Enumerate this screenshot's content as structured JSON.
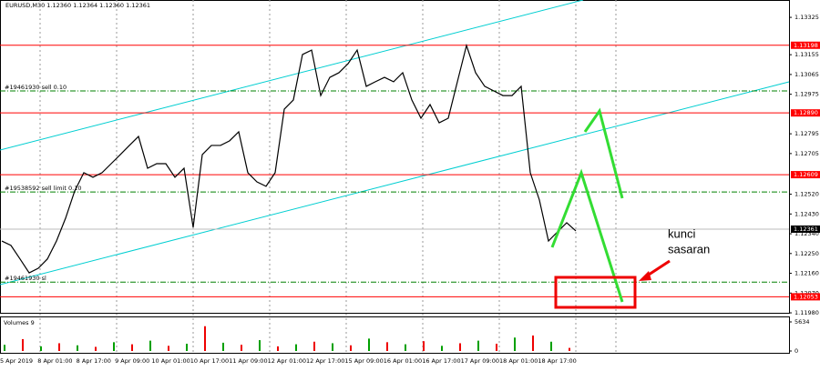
{
  "symbol_info": "EURUSD,M30  1.12360 1.12364 1.12360 1.12361",
  "price_chart": {
    "ylim": [
      1.11976,
      1.13404
    ],
    "yticks": [
      1.13325,
      1.13155,
      1.13065,
      1.12975,
      1.12795,
      1.12705,
      {
        "value": 1.1252,
        "label": "1.12520"
      },
      {
        "value": 1.1243,
        "label": "1.12430"
      },
      {
        "value": 1.1234,
        "label": "1.12340"
      },
      {
        "value": 1.1225,
        "label": "1.12250"
      },
      {
        "value": 1.1216,
        "label": "1.12160"
      },
      {
        "value": 1.1207,
        "label": "1.12070"
      },
      {
        "value": 1.1198,
        "label": "1.11980"
      }
    ],
    "levels": [
      1.13198,
      {
        "value": 1.1289,
        "label": "1.12890"
      },
      1.12609,
      1.12053
    ],
    "level_color": "#ff0000",
    "orders": [
      {
        "value": 1.1299,
        "label": "#19461930 sell 0.10"
      },
      {
        "value": 1.1253,
        "label": "#19538592 sell limit 0.10"
      },
      {
        "value": 1.1212,
        "label": "#19461930 sl"
      }
    ],
    "order_color": "#008000",
    "current": 1.12361,
    "color": "#000000",
    "close": [
      1.12307,
      1.12287,
      1.12225,
      1.12162,
      1.12183,
      1.12225,
      1.12307,
      1.12411,
      1.12535,
      1.12618,
      1.12597,
      1.12618,
      1.12659,
      1.127,
      1.12742,
      1.12783,
      1.12638,
      1.12659,
      1.12659,
      1.12597,
      1.12638,
      1.12369,
      1.127,
      1.12742,
      1.12742,
      1.12763,
      1.12804,
      1.12618,
      1.12576,
      1.12556,
      1.12618,
      1.12907,
      1.12949,
      1.13156,
      1.13176,
      1.12969,
      1.13052,
      1.13073,
      1.13114,
      1.13176,
      1.13011,
      1.13032,
      1.13052,
      1.13032,
      1.13073,
      1.12949,
      1.12866,
      1.12928,
      1.12845,
      1.12866,
      1.13032,
      1.13197,
      1.13073,
      1.13011,
      1.1299,
      1.12969,
      1.12969,
      1.13011,
      1.12618,
      1.12494,
      1.12307,
      1.12349,
      1.1239,
      1.12353
    ]
  },
  "volume_chart": {
    "label": "Volumes 9",
    "ylim": [
      0,
      5634
    ],
    "yticks": [
      5634,
      0
    ],
    "color": "#00a000",
    "values": [
      1200,
      2300,
      900,
      1500,
      1100,
      800,
      1700,
      1300,
      2000,
      1000,
      1400,
      4800,
      1600,
      1200,
      2100,
      900,
      1300,
      1800,
      1500,
      1100,
      2400,
      1700,
      1300,
      1900,
      1000,
      1500,
      2000,
      1400,
      2600,
      3000,
      1800,
      600
    ]
  },
  "time_labels": [
    "5 Apr 2019",
    "8 Apr 01:00",
    "8 Apr 17:00",
    "9 Apr 09:00",
    "10 Apr 01:00",
    "10 Apr 17:00",
    "11 Apr 09:00",
    "12 Apr 01:00",
    "12 Apr 17:00",
    "15 Apr 09:00",
    "16 Apr 01:00",
    "16 Apr 17:00",
    "17 Apr 09:00",
    "18 Apr 01:00",
    "18 Apr 17:00"
  ],
  "annotation": [
    "kunci",
    "sasaran"
  ]
}
